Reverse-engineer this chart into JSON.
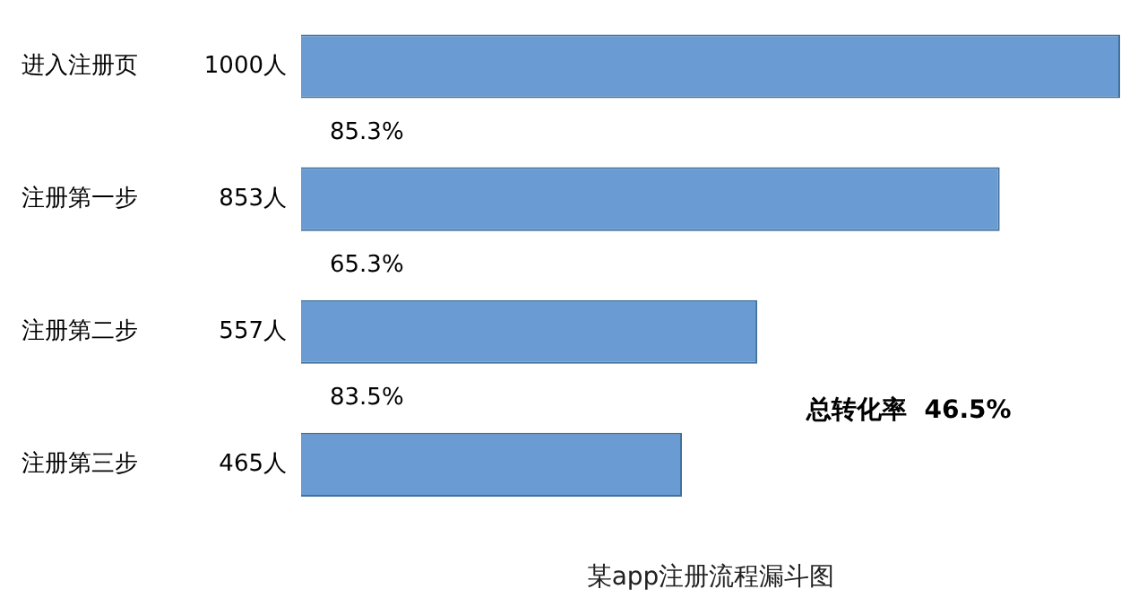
{
  "chart_data": {
    "type": "bar",
    "orientation": "horizontal",
    "title": "某app注册流程漏斗图",
    "categories": [
      "进入注册页",
      "注册第一步",
      "注册第二步",
      "注册第三步"
    ],
    "values": [
      1000,
      853,
      557,
      465
    ],
    "value_labels": [
      "1000人",
      "853人",
      "557人",
      "465人"
    ],
    "color": "#6a9bd3",
    "annotations": [
      "85.3%",
      "65.3%",
      "83.5%",
      "总转化率  46.5%"
    ],
    "legend": false
  }
}
